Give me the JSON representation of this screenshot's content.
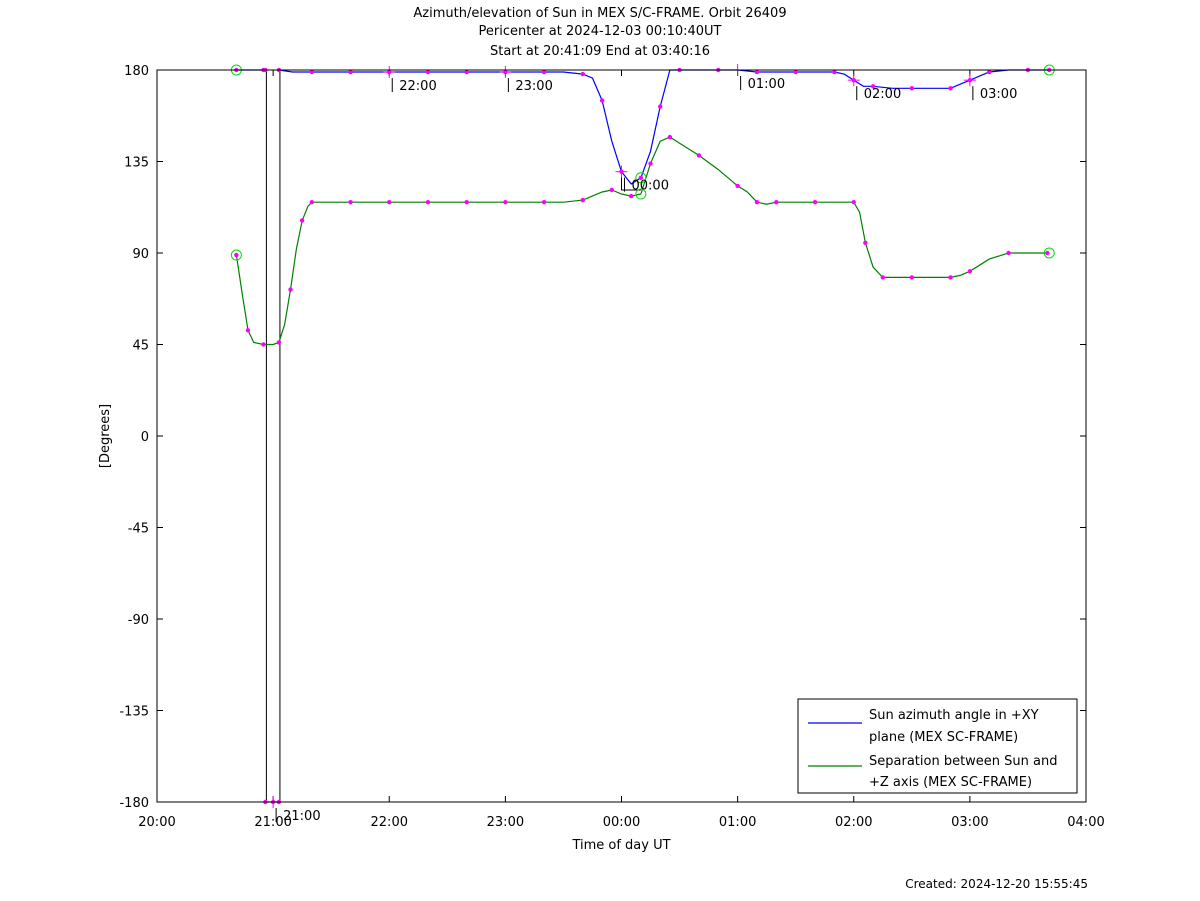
{
  "header": {
    "title_line1": "Azimuth/elevation of Sun in MEX S/C-FRAME.  Orbit 26409",
    "title_line2": "Pericenter at 2024-12-03 00:10:40UT",
    "title_line3": "Start at 20:41:09 End at 03:40:16"
  },
  "footer": {
    "created": "Created: 2024-12-20 15:55:45"
  },
  "chart_data": {
    "type": "line",
    "xlabel": "Time of day UT",
    "ylabel": "[Degrees]",
    "xlim": [
      0,
      480
    ],
    "ylim": [
      -180,
      180
    ],
    "x_unit": "minutes after 20:00 UT",
    "x_ticks": [
      0,
      60,
      120,
      180,
      240,
      300,
      360,
      420,
      480
    ],
    "x_tick_labels": [
      "20:00",
      "21:00",
      "22:00",
      "23:00",
      "00:00",
      "01:00",
      "02:00",
      "03:00",
      "04:00"
    ],
    "y_ticks": [
      180,
      135,
      90,
      45,
      0,
      -45,
      -90,
      -135,
      -180
    ],
    "y_tick_labels": [
      "180",
      "135",
      "90",
      "45",
      "0",
      "-45",
      "-90",
      "-135",
      "-180"
    ],
    "legend_position": "bottom-right",
    "series": [
      {
        "name": "Sun azimuth angle in +XY plane (MEX SC-FRAME)",
        "legend_line1": "Sun azimuth angle in +XY",
        "legend_line2": "plane (MEX SC-FRAME)",
        "color": "#0000ff",
        "segments": [
          [
            [
              41,
              180
            ],
            [
              50,
              180
            ],
            [
              55,
              180
            ],
            [
              56,
              180
            ]
          ],
          [
            [
              56,
              -180
            ],
            [
              57,
              -180
            ],
            [
              60,
              -180
            ],
            [
              63,
              -180
            ]
          ],
          [
            [
              63,
              180
            ],
            [
              70,
              179
            ],
            [
              80,
              179
            ],
            [
              90,
              179
            ],
            [
              100,
              179
            ],
            [
              110,
              179
            ],
            [
              120,
              179
            ],
            [
              130,
              179
            ],
            [
              140,
              179
            ],
            [
              150,
              179
            ],
            [
              160,
              179
            ],
            [
              170,
              179
            ],
            [
              180,
              179
            ],
            [
              190,
              179
            ],
            [
              200,
              179
            ],
            [
              210,
              179
            ],
            [
              220,
              178
            ],
            [
              225,
              176
            ],
            [
              230,
              165
            ],
            [
              235,
              145
            ],
            [
              240,
              130
            ],
            [
              245,
              124
            ],
            [
              250,
              127
            ],
            [
              255,
              140
            ],
            [
              260,
              162
            ],
            [
              265,
              180
            ],
            [
              270,
              180
            ],
            [
              280,
              180
            ],
            [
              290,
              180
            ],
            [
              300,
              180
            ],
            [
              310,
              179
            ],
            [
              320,
              179
            ],
            [
              330,
              179
            ],
            [
              340,
              179
            ],
            [
              350,
              179
            ],
            [
              355,
              178
            ],
            [
              360,
              175
            ],
            [
              365,
              172
            ],
            [
              370,
              172
            ],
            [
              380,
              171
            ],
            [
              390,
              171
            ],
            [
              400,
              171
            ],
            [
              410,
              171
            ],
            [
              415,
              173
            ],
            [
              420,
              175
            ],
            [
              425,
              177
            ],
            [
              430,
              179
            ],
            [
              440,
              180
            ],
            [
              450,
              180
            ],
            [
              460,
              180
            ],
            [
              461,
              180
            ]
          ]
        ]
      },
      {
        "name": "Separation between Sun and +Z axis (MEX SC-FRAME)",
        "legend_line1": "Separation between Sun and",
        "legend_line2": "+Z axis (MEX SC-FRAME)",
        "color": "#008000",
        "points": [
          [
            41,
            89
          ],
          [
            44,
            70
          ],
          [
            47,
            52
          ],
          [
            50,
            46
          ],
          [
            55,
            45
          ],
          [
            60,
            45
          ],
          [
            63,
            46
          ],
          [
            66,
            55
          ],
          [
            69,
            72
          ],
          [
            72,
            92
          ],
          [
            75,
            106
          ],
          [
            78,
            113
          ],
          [
            80,
            115
          ],
          [
            90,
            115
          ],
          [
            100,
            115
          ],
          [
            110,
            115
          ],
          [
            120,
            115
          ],
          [
            130,
            115
          ],
          [
            140,
            115
          ],
          [
            150,
            115
          ],
          [
            160,
            115
          ],
          [
            170,
            115
          ],
          [
            180,
            115
          ],
          [
            190,
            115
          ],
          [
            200,
            115
          ],
          [
            210,
            115
          ],
          [
            220,
            116
          ],
          [
            230,
            120
          ],
          [
            235,
            121
          ],
          [
            240,
            119
          ],
          [
            245,
            118
          ],
          [
            250,
            119
          ],
          [
            255,
            134
          ],
          [
            260,
            145
          ],
          [
            265,
            147
          ],
          [
            270,
            144
          ],
          [
            280,
            138
          ],
          [
            290,
            131
          ],
          [
            300,
            123
          ],
          [
            305,
            120
          ],
          [
            310,
            115
          ],
          [
            315,
            114
          ],
          [
            320,
            115
          ],
          [
            330,
            115
          ],
          [
            340,
            115
          ],
          [
            350,
            115
          ],
          [
            360,
            115
          ],
          [
            363,
            110
          ],
          [
            366,
            95
          ],
          [
            370,
            83
          ],
          [
            375,
            78
          ],
          [
            380,
            78
          ],
          [
            390,
            78
          ],
          [
            400,
            78
          ],
          [
            410,
            78
          ],
          [
            415,
            79
          ],
          [
            420,
            81
          ],
          [
            430,
            87
          ],
          [
            440,
            90
          ],
          [
            450,
            90
          ],
          [
            460,
            90
          ],
          [
            461,
            90
          ]
        ]
      }
    ],
    "time_annotations": [
      {
        "label": "21:00",
        "x": 60,
        "y": -180
      },
      {
        "label": "22:00",
        "x": 120,
        "y": 179
      },
      {
        "label": "23:00",
        "x": 180,
        "y": 179
      },
      {
        "label": "00:00",
        "x": 240,
        "y": 130
      },
      {
        "label": "01:00",
        "x": 300,
        "y": 180
      },
      {
        "label": "02:00",
        "x": 360,
        "y": 175
      },
      {
        "label": "03:00",
        "x": 420,
        "y": 175
      }
    ]
  }
}
